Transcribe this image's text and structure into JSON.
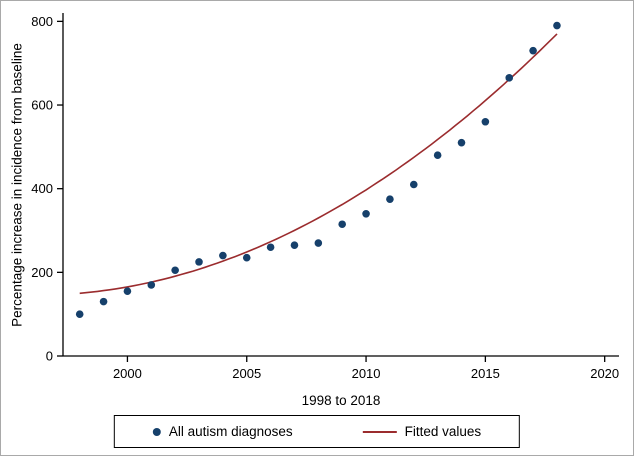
{
  "figure": {
    "y_axis_title": "Percentage increase in incidence from baseline",
    "x_axis_title": "1998 to 2018"
  },
  "legend": {
    "scatter_label": "All autism diagnoses",
    "fitted_label": "Fitted values"
  },
  "colors": {
    "scatter": "#16406b",
    "fitted": "#9b2c2e",
    "axis": "#000000"
  },
  "chart_data": {
    "type": "scatter",
    "title": "",
    "xlabel": "1998 to 2018",
    "ylabel": "Percentage increase in incidence from baseline",
    "xlim": [
      1997.3,
      2020.6
    ],
    "ylim": [
      0,
      820
    ],
    "xticks": [
      2000,
      2005,
      2010,
      2015,
      2020
    ],
    "yticks": [
      0,
      200,
      400,
      600,
      800
    ],
    "grid": false,
    "legend_position": "bottom",
    "series": [
      {
        "name": "All autism diagnoses",
        "type": "scatter",
        "x": [
          1998,
          1999,
          2000,
          2001,
          2002,
          2003,
          2004,
          2005,
          2006,
          2007,
          2008,
          2009,
          2010,
          2011,
          2012,
          2013,
          2014,
          2015,
          2016,
          2017,
          2018
        ],
        "y": [
          100,
          130,
          155,
          170,
          205,
          225,
          240,
          235,
          260,
          265,
          270,
          315,
          340,
          375,
          410,
          480,
          510,
          560,
          665,
          730,
          790
        ]
      },
      {
        "name": "Fitted values",
        "type": "line",
        "fit": {
          "form": "quadratic",
          "base_year": 1998,
          "coefficients": [
            150,
            5,
            1.3
          ],
          "x_range": [
            1998,
            2018.2
          ]
        },
        "x": [
          1998,
          1999,
          2000,
          2001,
          2002,
          2003,
          2004,
          2005,
          2006,
          2007,
          2008,
          2009,
          2010,
          2011,
          2012,
          2013,
          2014,
          2015,
          2016,
          2017,
          2018
        ],
        "y": [
          150,
          156,
          165,
          177,
          191,
          208,
          227,
          249,
          273,
          300,
          330,
          362,
          397,
          435,
          475,
          518,
          563,
          611,
          661,
          714,
          770
        ]
      }
    ]
  }
}
